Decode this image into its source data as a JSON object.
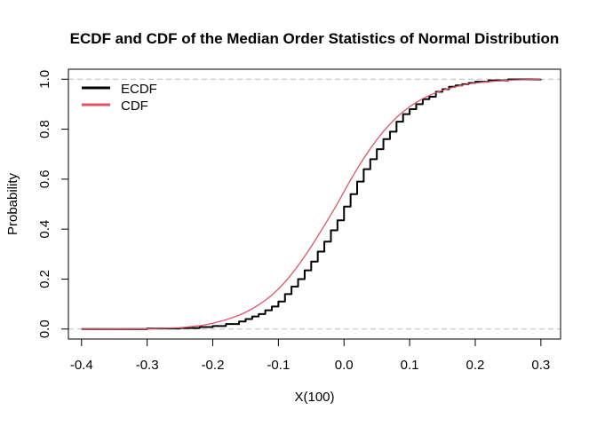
{
  "chart_data": {
    "type": "line",
    "title": "ECDF and CDF of the Median Order Statistics of Normal Distribution",
    "xlabel": "X(100)",
    "ylabel": "Probability",
    "xlim": [
      -0.42,
      0.33
    ],
    "ylim": [
      -0.04,
      1.04
    ],
    "x_ticks": [
      -0.4,
      -0.3,
      -0.2,
      -0.1,
      0.0,
      0.1,
      0.2,
      0.3
    ],
    "x_tick_labels": [
      "-0.4",
      "-0.3",
      "-0.2",
      "-0.1",
      "0.0",
      "0.1",
      "0.2",
      "0.3"
    ],
    "y_ticks": [
      0.0,
      0.2,
      0.4,
      0.6,
      0.8,
      1.0
    ],
    "y_tick_labels": [
      "0.0",
      "0.2",
      "0.4",
      "0.6",
      "0.8",
      "1.0"
    ],
    "reference_lines": [
      0,
      1
    ],
    "reference_line_color": "#bebebe",
    "legend_position": "top-left",
    "series": [
      {
        "name": "ECDF",
        "color": "#000000",
        "step": true,
        "x": [
          -0.4,
          -0.3,
          -0.25,
          -0.22,
          -0.2,
          -0.18,
          -0.16,
          -0.15,
          -0.14,
          -0.13,
          -0.12,
          -0.11,
          -0.1,
          -0.09,
          -0.08,
          -0.07,
          -0.06,
          -0.05,
          -0.04,
          -0.03,
          -0.02,
          -0.01,
          0.0,
          0.01,
          0.02,
          0.03,
          0.04,
          0.05,
          0.06,
          0.07,
          0.08,
          0.09,
          0.1,
          0.11,
          0.12,
          0.13,
          0.14,
          0.15,
          0.16,
          0.17,
          0.18,
          0.19,
          0.2,
          0.22,
          0.25,
          0.3
        ],
        "y": [
          0.0,
          0.002,
          0.004,
          0.008,
          0.012,
          0.02,
          0.03,
          0.04,
          0.05,
          0.06,
          0.075,
          0.09,
          0.11,
          0.14,
          0.17,
          0.2,
          0.235,
          0.27,
          0.31,
          0.35,
          0.395,
          0.435,
          0.49,
          0.54,
          0.59,
          0.64,
          0.68,
          0.72,
          0.76,
          0.79,
          0.83,
          0.86,
          0.88,
          0.9,
          0.92,
          0.93,
          0.95,
          0.96,
          0.97,
          0.975,
          0.98,
          0.985,
          0.99,
          0.995,
          0.999,
          1.0
        ]
      },
      {
        "name": "CDF",
        "color": "#df536b",
        "step": false,
        "x": [
          -0.4,
          -0.3,
          -0.25,
          -0.22,
          -0.2,
          -0.18,
          -0.16,
          -0.15,
          -0.14,
          -0.13,
          -0.12,
          -0.11,
          -0.1,
          -0.09,
          -0.08,
          -0.07,
          -0.06,
          -0.05,
          -0.04,
          -0.03,
          -0.02,
          -0.01,
          0.0,
          0.01,
          0.02,
          0.03,
          0.04,
          0.05,
          0.06,
          0.07,
          0.08,
          0.09,
          0.1,
          0.11,
          0.12,
          0.13,
          0.14,
          0.15,
          0.16,
          0.17,
          0.18,
          0.19,
          0.2,
          0.22,
          0.25,
          0.3
        ],
        "y": [
          0.0,
          0.001,
          0.005,
          0.013,
          0.023,
          0.037,
          0.055,
          0.067,
          0.081,
          0.097,
          0.115,
          0.136,
          0.16,
          0.188,
          0.219,
          0.254,
          0.291,
          0.33,
          0.372,
          0.414,
          0.458,
          0.502,
          0.55,
          0.597,
          0.641,
          0.683,
          0.722,
          0.758,
          0.791,
          0.82,
          0.847,
          0.87,
          0.89,
          0.907,
          0.922,
          0.935,
          0.946,
          0.955,
          0.963,
          0.97,
          0.976,
          0.981,
          0.985,
          0.99,
          0.996,
          1.0
        ]
      }
    ]
  }
}
